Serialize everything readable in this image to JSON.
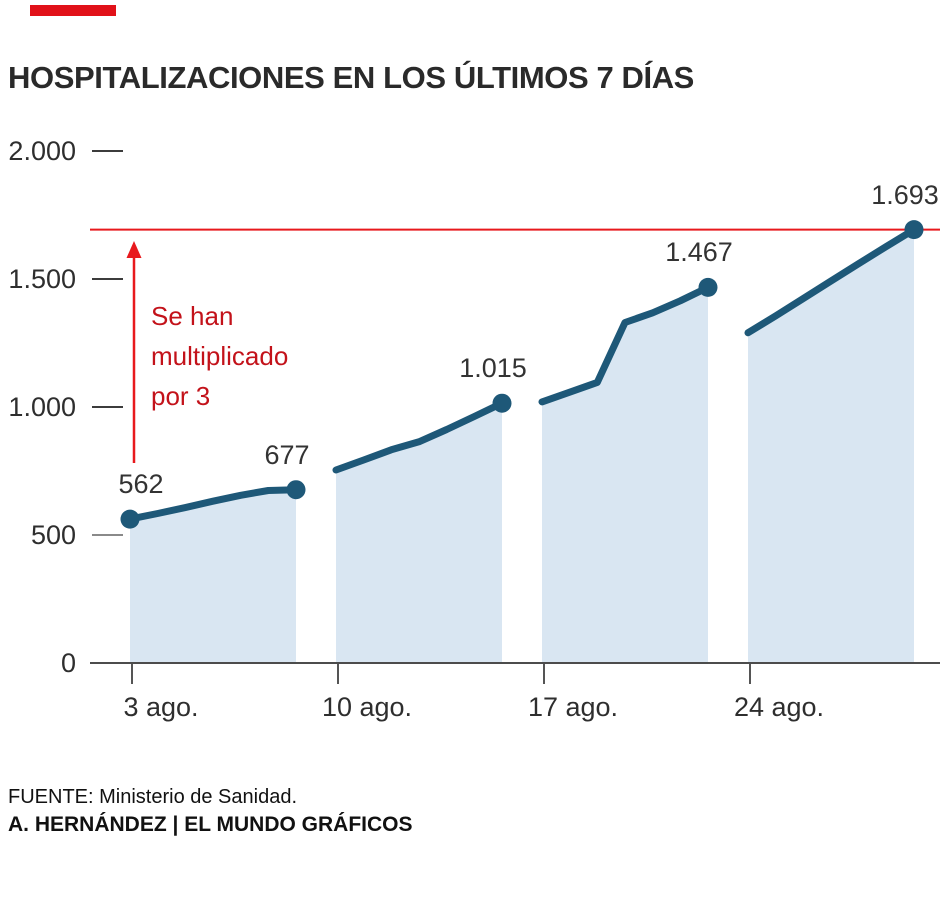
{
  "brand": {
    "accent_bar_color": "#e11119"
  },
  "title": "HOSPITALIZACIONES EN LOS ÚLTIMOS 7 DÍAS",
  "annotation": {
    "text": "Se han\nmultiplicado\npor 3",
    "color": "#c3121a"
  },
  "footer": {
    "source": "FUENTE: Ministerio de Sanidad.",
    "credit": "A. HERNÁNDEZ | EL MUNDO GRÁFICOS"
  },
  "chart_data": {
    "type": "area",
    "title": "HOSPITALIZACIONES EN LOS ÚLTIMOS 7 DÍAS",
    "ylim": [
      0,
      2000
    ],
    "grid": false,
    "line_color": "#1e5878",
    "area_color": "#d9e6f2",
    "axis_color": "#4c4c4c",
    "reference_line": {
      "value": 1693,
      "color": "#e8191d"
    },
    "arrow_color": "#e8191d",
    "y_axis": [
      {
        "label": "2.000",
        "value": 2000
      },
      {
        "label": "1.500",
        "value": 1500
      },
      {
        "label": "1.000",
        "value": 1000
      },
      {
        "label": "500",
        "value": 500
      },
      {
        "label": "0",
        "value": 0
      }
    ],
    "x_tick_labels": [
      "3 ago.",
      "10 ago.",
      "17 ago.",
      "24 ago."
    ],
    "weeks": [
      {
        "start_label": "3 ago.",
        "daily": [
          562,
          584,
          607,
          632,
          655,
          674,
          677
        ]
      },
      {
        "start_label": "10 ago.",
        "daily": [
          754,
          793,
          833,
          864,
          912,
          963,
          1015
        ]
      },
      {
        "start_label": "17 ago.",
        "daily": [
          1020,
          1058,
          1096,
          1330,
          1368,
          1415,
          1467
        ]
      },
      {
        "start_label": "24 ago.",
        "daily": [
          1290,
          1356,
          1424,
          1492,
          1560,
          1627,
          1693
        ]
      }
    ],
    "labeled_points": [
      {
        "week": 0,
        "day": 0,
        "value": 562,
        "label": "562"
      },
      {
        "week": 0,
        "day": 6,
        "value": 677,
        "label": "677"
      },
      {
        "week": 1,
        "day": 6,
        "value": 1015,
        "label": "1.015"
      },
      {
        "week": 2,
        "day": 6,
        "value": 1467,
        "label": "1.467"
      },
      {
        "week": 3,
        "day": 6,
        "value": 1693,
        "label": "1.693"
      }
    ]
  }
}
